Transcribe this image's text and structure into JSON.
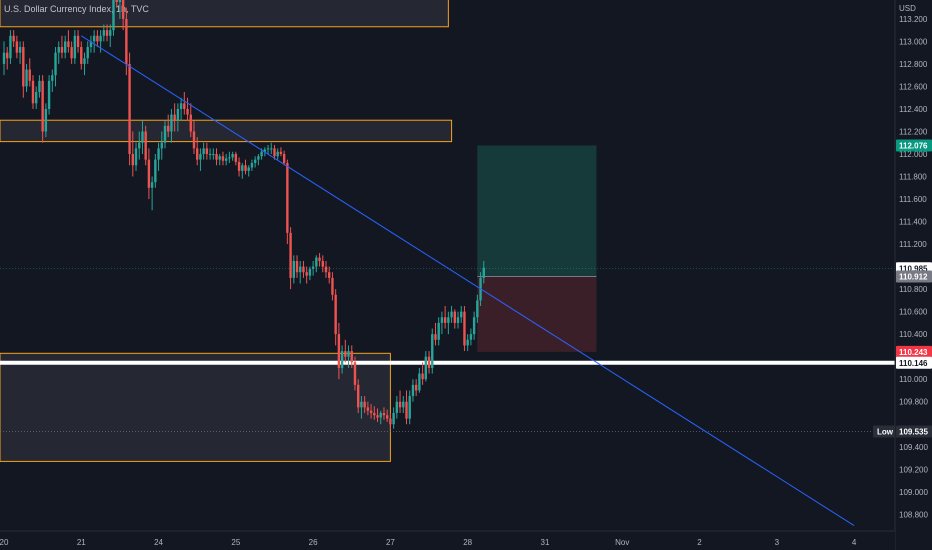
{
  "header": {
    "title": "U.S. Dollar Currency Index, 1h, TVC"
  },
  "colors": {
    "background": "#131722",
    "up": "#26a69a",
    "down": "#ef5350",
    "trendline": "#2962ff",
    "zone_border": "#f7a21b",
    "target_zone": "#163a3a",
    "stop_zone": "#3b1f28",
    "support_line": "#ffffff"
  },
  "chart_data": {
    "type": "candlestick",
    "title": "U.S. Dollar Currency Index, 1h, TVC",
    "currency": "USD",
    "y_ticks": [
      {
        "v": 113.2,
        "label": "113.200"
      },
      {
        "v": 113.0,
        "label": "113.000"
      },
      {
        "v": 112.8,
        "label": "112.800"
      },
      {
        "v": 112.6,
        "label": "112.600"
      },
      {
        "v": 112.4,
        "label": "112.400"
      },
      {
        "v": 112.2,
        "label": "112.200"
      },
      {
        "v": 112.0,
        "label": "112.000"
      },
      {
        "v": 111.8,
        "label": "111.800"
      },
      {
        "v": 111.6,
        "label": "111.600"
      },
      {
        "v": 111.4,
        "label": "111.400"
      },
      {
        "v": 111.2,
        "label": "111.200"
      },
      {
        "v": 110.8,
        "label": "110.800"
      },
      {
        "v": 110.6,
        "label": "110.600"
      },
      {
        "v": 110.4,
        "label": "110.400"
      },
      {
        "v": 110.0,
        "label": "110.000"
      },
      {
        "v": 109.8,
        "label": "109.800"
      },
      {
        "v": 109.4,
        "label": "109.400"
      },
      {
        "v": 109.2,
        "label": "109.200"
      },
      {
        "v": 109.0,
        "label": "109.000"
      },
      {
        "v": 108.8,
        "label": "108.800"
      }
    ],
    "x_ticks": [
      {
        "t": 0,
        "label": "20"
      },
      {
        "t": 24,
        "label": "21"
      },
      {
        "t": 48,
        "label": "24"
      },
      {
        "t": 72,
        "label": "25"
      },
      {
        "t": 96,
        "label": "26"
      },
      {
        "t": 120,
        "label": "27"
      },
      {
        "t": 144,
        "label": "28"
      },
      {
        "t": 168,
        "label": "31"
      },
      {
        "t": 192,
        "label": "Nov"
      },
      {
        "t": 216,
        "label": "2"
      },
      {
        "t": 240,
        "label": "3"
      },
      {
        "t": 264,
        "label": "4"
      }
    ],
    "price_tags": [
      {
        "v": 112.076,
        "label": "112.076",
        "bg": "#089981",
        "fg": "#ffffff"
      },
      {
        "v": 110.985,
        "label": "110.985",
        "bg": "#ffffff",
        "fg": "#131722"
      },
      {
        "v": 110.912,
        "label": "110.912",
        "bg": "#787b86",
        "fg": "#ffffff"
      },
      {
        "v": 110.243,
        "label": "110.243",
        "bg": "#f23645",
        "fg": "#ffffff"
      },
      {
        "v": 110.146,
        "label": "110.146",
        "bg": "#ffffff",
        "fg": "#131722"
      },
      {
        "v": 109.535,
        "label": "109.535",
        "bg": "#2a2e39",
        "fg": "#ffffff",
        "prefix": "Low"
      }
    ],
    "zones": [
      {
        "t0": -2,
        "t1": 138,
        "top": 113.4,
        "bottom": 113.13
      },
      {
        "t0": -2,
        "t1": 139,
        "top": 112.3,
        "bottom": 112.11
      },
      {
        "t0": -2,
        "t1": 120,
        "top": 110.23,
        "bottom": 109.27
      }
    ],
    "position": {
      "t0": 147,
      "t1": 184,
      "entry": 110.912,
      "target": 112.076,
      "stop": 110.243
    },
    "trendline": {
      "t0": 24,
      "v0": 113.05,
      "t1": 264,
      "v1": 108.7
    },
    "support_level": 110.146,
    "low_level": 109.535,
    "last_price": 110.985,
    "ohlc": [
      [
        0,
        112.8,
        113.0,
        112.7,
        112.9
      ],
      [
        1,
        112.9,
        112.95,
        112.75,
        112.85
      ],
      [
        2,
        112.85,
        113.1,
        112.8,
        113.05
      ],
      [
        3,
        113.05,
        113.1,
        112.95,
        113.0
      ],
      [
        4,
        113.0,
        113.05,
        112.85,
        112.9
      ],
      [
        5,
        112.9,
        113.0,
        112.8,
        112.95
      ],
      [
        6,
        112.95,
        113.0,
        112.5,
        112.6
      ],
      [
        7,
        112.6,
        112.8,
        112.55,
        112.75
      ],
      [
        8,
        112.75,
        112.85,
        112.6,
        112.65
      ],
      [
        9,
        112.65,
        112.7,
        112.4,
        112.45
      ],
      [
        10,
        112.45,
        112.6,
        112.4,
        112.55
      ],
      [
        11,
        112.55,
        112.7,
        112.5,
        112.65
      ],
      [
        12,
        112.65,
        112.7,
        112.1,
        112.2
      ],
      [
        13,
        112.2,
        112.45,
        112.15,
        112.4
      ],
      [
        14,
        112.4,
        112.7,
        112.35,
        112.65
      ],
      [
        15,
        112.65,
        112.75,
        112.55,
        112.7
      ],
      [
        16,
        112.7,
        112.95,
        112.6,
        112.9
      ],
      [
        17,
        112.9,
        113.0,
        112.8,
        112.95
      ],
      [
        18,
        112.95,
        113.05,
        112.85,
        112.9
      ],
      [
        19,
        112.9,
        113.05,
        112.85,
        113.0
      ],
      [
        20,
        113.0,
        113.1,
        112.9,
        112.95
      ],
      [
        21,
        112.95,
        113.0,
        112.8,
        112.85
      ],
      [
        22,
        112.85,
        113.1,
        112.8,
        113.05
      ],
      [
        23,
        113.05,
        113.1,
        112.9,
        112.95
      ],
      [
        24,
        112.95,
        113.0,
        112.75,
        112.8
      ],
      [
        25,
        112.8,
        112.9,
        112.7,
        112.85
      ],
      [
        26,
        112.85,
        113.0,
        112.8,
        112.95
      ],
      [
        27,
        112.95,
        113.05,
        112.9,
        113.0
      ],
      [
        28,
        113.0,
        113.1,
        112.9,
        113.05
      ],
      [
        29,
        113.05,
        113.1,
        112.95,
        113.0
      ],
      [
        30,
        113.0,
        113.1,
        112.9,
        113.05
      ],
      [
        31,
        113.05,
        113.15,
        113.0,
        113.1
      ],
      [
        32,
        113.1,
        113.15,
        113.0,
        113.05
      ],
      [
        33,
        113.05,
        113.15,
        112.95,
        113.1
      ],
      [
        34,
        113.1,
        113.5,
        113.05,
        113.4
      ],
      [
        35,
        113.4,
        113.5,
        113.3,
        113.35
      ],
      [
        36,
        113.35,
        113.5,
        113.2,
        113.45
      ],
      [
        37,
        113.45,
        113.5,
        113.1,
        113.2
      ],
      [
        38,
        113.2,
        113.3,
        112.7,
        112.8
      ],
      [
        39,
        112.8,
        112.9,
        111.9,
        112.0
      ],
      [
        40,
        112.0,
        112.2,
        111.8,
        111.9
      ],
      [
        41,
        111.9,
        112.1,
        111.85,
        112.05
      ],
      [
        42,
        112.05,
        112.2,
        111.95,
        112.1
      ],
      [
        43,
        112.1,
        112.3,
        112.0,
        112.2
      ],
      [
        44,
        112.2,
        112.25,
        111.9,
        111.95
      ],
      [
        45,
        111.95,
        112.05,
        111.6,
        111.7
      ],
      [
        46,
        111.7,
        111.8,
        111.5,
        111.75
      ],
      [
        47,
        111.75,
        112.0,
        111.7,
        111.95
      ],
      [
        48,
        111.95,
        112.1,
        111.85,
        112.05
      ],
      [
        49,
        112.05,
        112.2,
        111.95,
        112.1
      ],
      [
        50,
        112.1,
        112.3,
        112.05,
        112.25
      ],
      [
        51,
        112.25,
        112.35,
        112.15,
        112.2
      ],
      [
        52,
        112.2,
        112.4,
        112.1,
        112.35
      ],
      [
        53,
        112.35,
        112.45,
        112.2,
        112.3
      ],
      [
        54,
        112.3,
        112.45,
        112.2,
        112.4
      ],
      [
        55,
        112.4,
        112.5,
        112.3,
        112.45
      ],
      [
        56,
        112.45,
        112.55,
        112.35,
        112.4
      ],
      [
        57,
        112.4,
        112.5,
        112.3,
        112.35
      ],
      [
        58,
        112.35,
        112.45,
        112.15,
        112.2
      ],
      [
        59,
        112.2,
        112.3,
        112.0,
        112.05
      ],
      [
        60,
        112.05,
        112.15,
        111.9,
        111.95
      ],
      [
        61,
        111.95,
        112.05,
        111.85,
        112.0
      ],
      [
        62,
        112.0,
        112.1,
        111.95,
        112.05
      ],
      [
        63,
        112.05,
        112.1,
        111.95,
        112.0
      ],
      [
        64,
        112.0,
        112.05,
        111.95,
        112.0
      ],
      [
        65,
        112.0,
        112.05,
        111.95,
        112.0
      ],
      [
        66,
        112.0,
        112.05,
        111.9,
        111.95
      ],
      [
        67,
        111.95,
        112.0,
        111.9,
        111.98
      ],
      [
        68,
        111.98,
        112.02,
        111.9,
        111.94
      ],
      [
        69,
        111.94,
        112.0,
        111.9,
        111.96
      ],
      [
        70,
        111.96,
        112.02,
        111.92,
        111.97
      ],
      [
        71,
        111.97,
        112.02,
        111.94,
        112.0
      ],
      [
        72,
        112.0,
        112.02,
        111.9,
        111.93
      ],
      [
        73,
        111.93,
        111.97,
        111.8,
        111.85
      ],
      [
        74,
        111.85,
        111.92,
        111.78,
        111.9
      ],
      [
        75,
        111.9,
        111.95,
        111.82,
        111.85
      ],
      [
        76,
        111.85,
        111.9,
        111.8,
        111.88
      ],
      [
        77,
        111.88,
        111.95,
        111.85,
        111.92
      ],
      [
        78,
        111.92,
        111.98,
        111.88,
        111.95
      ],
      [
        79,
        111.95,
        112.0,
        111.9,
        111.98
      ],
      [
        80,
        111.98,
        112.05,
        111.95,
        112.02
      ],
      [
        81,
        112.02,
        112.06,
        111.98,
        112.04
      ],
      [
        82,
        112.04,
        112.08,
        112.0,
        112.05
      ],
      [
        83,
        112.05,
        112.1,
        112.0,
        112.05
      ],
      [
        84,
        112.05,
        112.08,
        111.95,
        111.98
      ],
      [
        85,
        111.98,
        112.05,
        111.95,
        112.02
      ],
      [
        86,
        112.02,
        112.06,
        111.98,
        112.0
      ],
      [
        87,
        112.0,
        112.03,
        111.9,
        111.92
      ],
      [
        88,
        111.92,
        111.95,
        111.2,
        111.3
      ],
      [
        89,
        111.3,
        111.35,
        110.8,
        110.9
      ],
      [
        90,
        110.9,
        111.1,
        110.85,
        111.05
      ],
      [
        91,
        111.05,
        111.1,
        110.9,
        110.95
      ],
      [
        92,
        110.95,
        111.05,
        110.85,
        111.0
      ],
      [
        93,
        111.0,
        111.05,
        110.9,
        110.95
      ],
      [
        94,
        110.95,
        111.0,
        110.85,
        110.92
      ],
      [
        95,
        110.92,
        111.0,
        110.88,
        110.98
      ],
      [
        96,
        110.98,
        111.05,
        110.92,
        111.0
      ],
      [
        97,
        111.0,
        111.1,
        110.95,
        111.08
      ],
      [
        98,
        111.08,
        111.12,
        111.0,
        111.05
      ],
      [
        99,
        111.05,
        111.1,
        110.95,
        111.0
      ],
      [
        100,
        111.0,
        111.05,
        110.9,
        110.95
      ],
      [
        101,
        110.95,
        111.0,
        110.85,
        110.9
      ],
      [
        102,
        110.9,
        110.95,
        110.7,
        110.75
      ],
      [
        103,
        110.75,
        110.8,
        110.3,
        110.4
      ],
      [
        104,
        110.4,
        110.5,
        110.0,
        110.1
      ],
      [
        105,
        110.1,
        110.3,
        110.05,
        110.25
      ],
      [
        106,
        110.25,
        110.35,
        110.15,
        110.2
      ],
      [
        107,
        110.2,
        110.3,
        110.1,
        110.25
      ],
      [
        108,
        110.25,
        110.3,
        110.1,
        110.15
      ],
      [
        109,
        110.15,
        110.2,
        109.9,
        109.95
      ],
      [
        110,
        109.95,
        110.0,
        109.7,
        109.75
      ],
      [
        111,
        109.75,
        109.85,
        109.65,
        109.8
      ],
      [
        112,
        109.8,
        109.85,
        109.7,
        109.75
      ],
      [
        113,
        109.75,
        109.8,
        109.68,
        109.72
      ],
      [
        114,
        109.72,
        109.78,
        109.65,
        109.7
      ],
      [
        115,
        109.7,
        109.76,
        109.64,
        109.68
      ],
      [
        116,
        109.68,
        109.74,
        109.62,
        109.66
      ],
      [
        117,
        109.66,
        109.72,
        109.6,
        109.7
      ],
      [
        118,
        109.7,
        109.75,
        109.64,
        109.68
      ],
      [
        119,
        109.68,
        109.73,
        109.62,
        109.65
      ],
      [
        120,
        109.65,
        109.7,
        109.55,
        109.6
      ],
      [
        121,
        109.6,
        109.75,
        109.56,
        109.7
      ],
      [
        122,
        109.7,
        109.85,
        109.65,
        109.8
      ],
      [
        123,
        109.8,
        109.9,
        109.7,
        109.75
      ],
      [
        124,
        109.75,
        109.85,
        109.7,
        109.8
      ],
      [
        125,
        109.8,
        109.9,
        109.6,
        109.65
      ],
      [
        126,
        109.65,
        109.9,
        109.6,
        109.85
      ],
      [
        127,
        109.85,
        110.0,
        109.8,
        109.95
      ],
      [
        128,
        109.95,
        110.0,
        109.85,
        109.9
      ],
      [
        129,
        109.9,
        110.1,
        109.88,
        110.05
      ],
      [
        130,
        110.05,
        110.15,
        109.95,
        110.0
      ],
      [
        131,
        110.0,
        110.25,
        109.98,
        110.2
      ],
      [
        132,
        110.2,
        110.25,
        110.05,
        110.1
      ],
      [
        133,
        110.1,
        110.45,
        110.05,
        110.4
      ],
      [
        134,
        110.4,
        110.5,
        110.3,
        110.35
      ],
      [
        135,
        110.35,
        110.55,
        110.3,
        110.5
      ],
      [
        136,
        110.5,
        110.6,
        110.4,
        110.55
      ],
      [
        137,
        110.55,
        110.65,
        110.45,
        110.5
      ],
      [
        138,
        110.5,
        110.6,
        110.4,
        110.55
      ],
      [
        139,
        110.55,
        110.65,
        110.5,
        110.6
      ],
      [
        140,
        110.6,
        110.62,
        110.45,
        110.5
      ],
      [
        141,
        110.5,
        110.6,
        110.45,
        110.55
      ],
      [
        142,
        110.55,
        110.65,
        110.5,
        110.6
      ],
      [
        143,
        110.6,
        110.65,
        110.25,
        110.3
      ],
      [
        144,
        110.3,
        110.4,
        110.25,
        110.35
      ],
      [
        145,
        110.35,
        110.45,
        110.3,
        110.4
      ],
      [
        146,
        110.4,
        110.6,
        110.35,
        110.55
      ],
      [
        147,
        110.55,
        110.75,
        110.5,
        110.7
      ],
      [
        148,
        110.7,
        110.95,
        110.65,
        110.9
      ],
      [
        149,
        110.9,
        111.05,
        110.85,
        110.99
      ]
    ]
  }
}
